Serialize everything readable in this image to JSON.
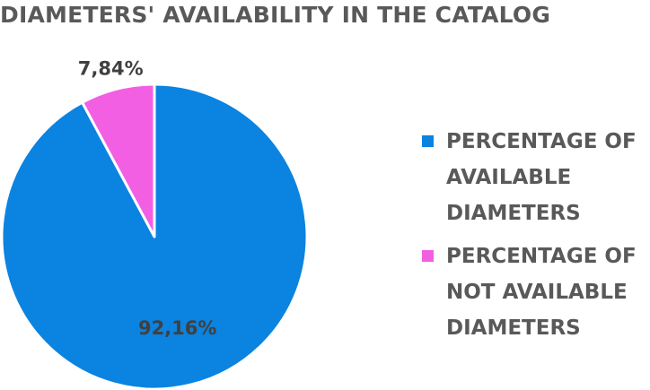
{
  "chart_data": {
    "type": "pie",
    "title": "DIAMETERS' AVAILABILITY IN THE CATALOG",
    "series": [
      {
        "name": "PERCENTAGE OF AVAILABLE DIAMETERS",
        "value": 92.16,
        "label": "92,16%",
        "color": "#0b83e0"
      },
      {
        "name": "PERCENTAGE OF NOT AVAILABLE DIAMETERS",
        "value": 7.84,
        "label": "7,84%",
        "color": "#f25fe3"
      }
    ],
    "legend_position": "right"
  }
}
